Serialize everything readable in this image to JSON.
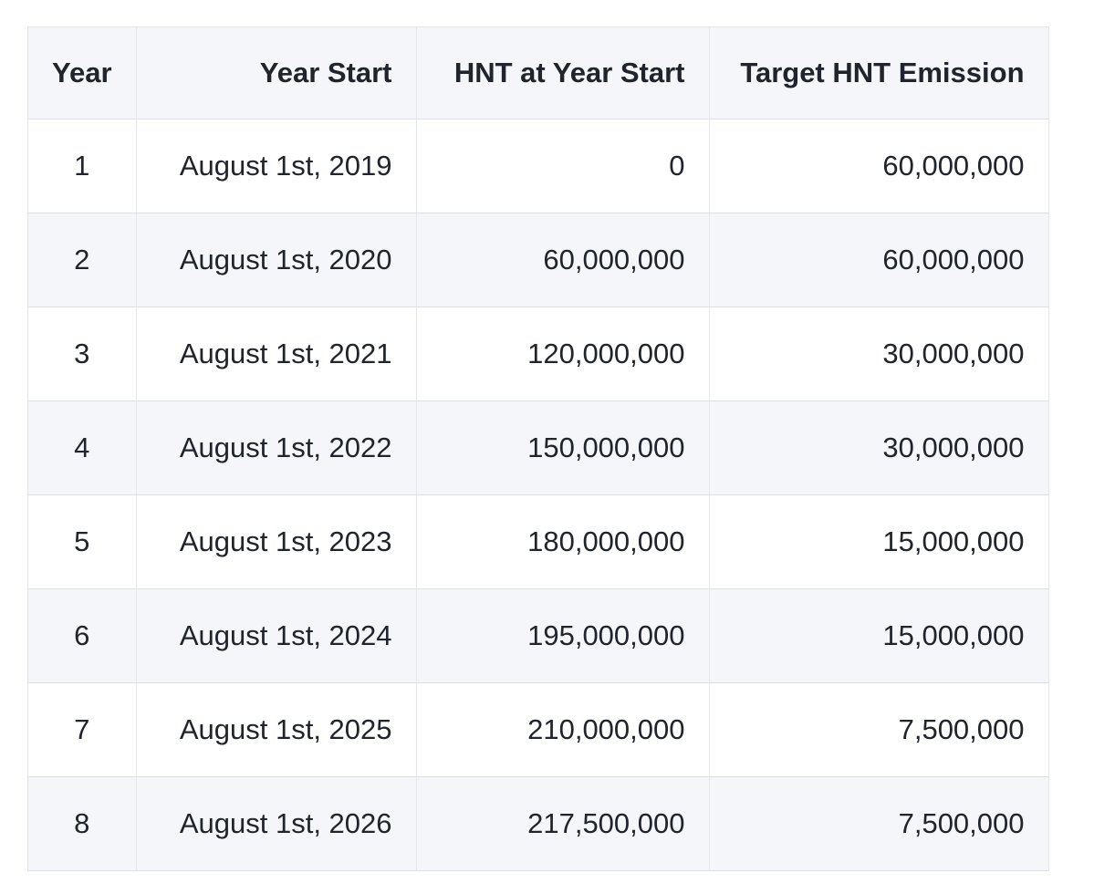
{
  "table": {
    "name": "hnt-emission-schedule",
    "columns": [
      {
        "label": "Year",
        "align": "center"
      },
      {
        "label": "Year Start",
        "align": "right"
      },
      {
        "label": "HNT at Year Start",
        "align": "right"
      },
      {
        "label": "Target HNT Emission",
        "align": "right"
      }
    ],
    "rows": [
      {
        "year": "1",
        "year_start": "August 1st, 2019",
        "hnt_at_year_start": "0",
        "target_hnt_emission": "60,000,000"
      },
      {
        "year": "2",
        "year_start": "August 1st, 2020",
        "hnt_at_year_start": "60,000,000",
        "target_hnt_emission": "60,000,000"
      },
      {
        "year": "3",
        "year_start": "August 1st, 2021",
        "hnt_at_year_start": "120,000,000",
        "target_hnt_emission": "30,000,000"
      },
      {
        "year": "4",
        "year_start": "August 1st, 2022",
        "hnt_at_year_start": "150,000,000",
        "target_hnt_emission": "30,000,000"
      },
      {
        "year": "5",
        "year_start": "August 1st, 2023",
        "hnt_at_year_start": "180,000,000",
        "target_hnt_emission": "15,000,000"
      },
      {
        "year": "6",
        "year_start": "August 1st, 2024",
        "hnt_at_year_start": "195,000,000",
        "target_hnt_emission": "15,000,000"
      },
      {
        "year": "7",
        "year_start": "August 1st, 2025",
        "hnt_at_year_start": "210,000,000",
        "target_hnt_emission": "7,500,000"
      },
      {
        "year": "8",
        "year_start": "August 1st, 2026",
        "hnt_at_year_start": "217,500,000",
        "target_hnt_emission": "7,500,000"
      }
    ],
    "colors": {
      "header_bg": "#f5f6f9",
      "row_alt_bg": "#f5f6f9",
      "row_bg": "#ffffff",
      "border_horizontal": "#dcdee4",
      "border_vertical": "#e4e6eb",
      "text": "#20242c"
    }
  }
}
